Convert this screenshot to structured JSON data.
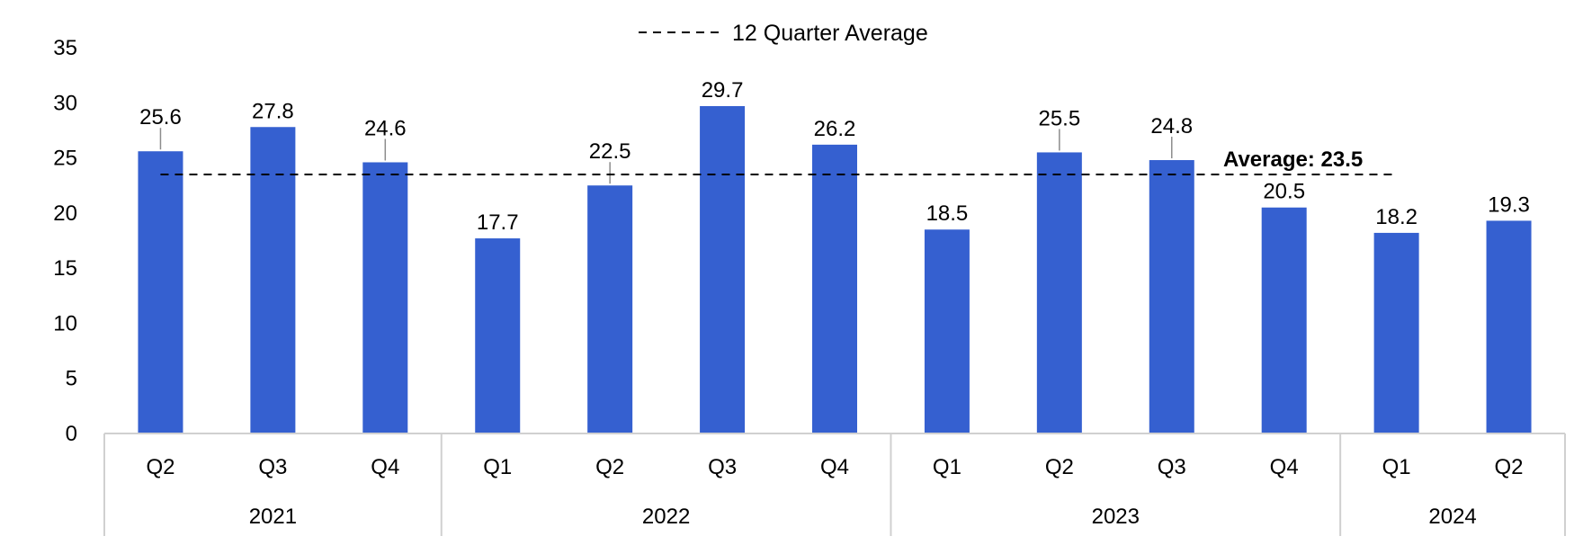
{
  "chart_data": {
    "type": "bar",
    "categories": [
      "Q2",
      "Q3",
      "Q4",
      "Q1",
      "Q2",
      "Q3",
      "Q4",
      "Q1",
      "Q2",
      "Q3",
      "Q4",
      "Q1",
      "Q2"
    ],
    "groups": [
      {
        "label": "2021",
        "count": 3
      },
      {
        "label": "2022",
        "count": 4
      },
      {
        "label": "2023",
        "count": 4
      },
      {
        "label": "2024",
        "count": 2
      }
    ],
    "values": [
      25.6,
      27.8,
      24.6,
      17.7,
      22.5,
      29.7,
      26.2,
      18.5,
      25.5,
      24.8,
      20.5,
      18.2,
      19.3
    ],
    "value_labels": [
      "25.6",
      "27.8",
      "24.6",
      "17.7",
      "22.5",
      "29.7",
      "26.2",
      "18.5",
      "25.5",
      "24.8",
      "20.5",
      "18.2",
      "19.3"
    ],
    "ylim": [
      0,
      35
    ],
    "yticks": [
      0,
      5,
      10,
      15,
      20,
      25,
      30,
      35
    ],
    "average": {
      "value": 23.5,
      "label": "Average: 23.5",
      "legend": "12 Quarter Average"
    },
    "legend_position": "top-center",
    "grid": false,
    "colors": {
      "bar": "#3560D0",
      "axis": "#D0D0D0",
      "average_line": "#000000",
      "leader": "#8C8C8C"
    }
  }
}
